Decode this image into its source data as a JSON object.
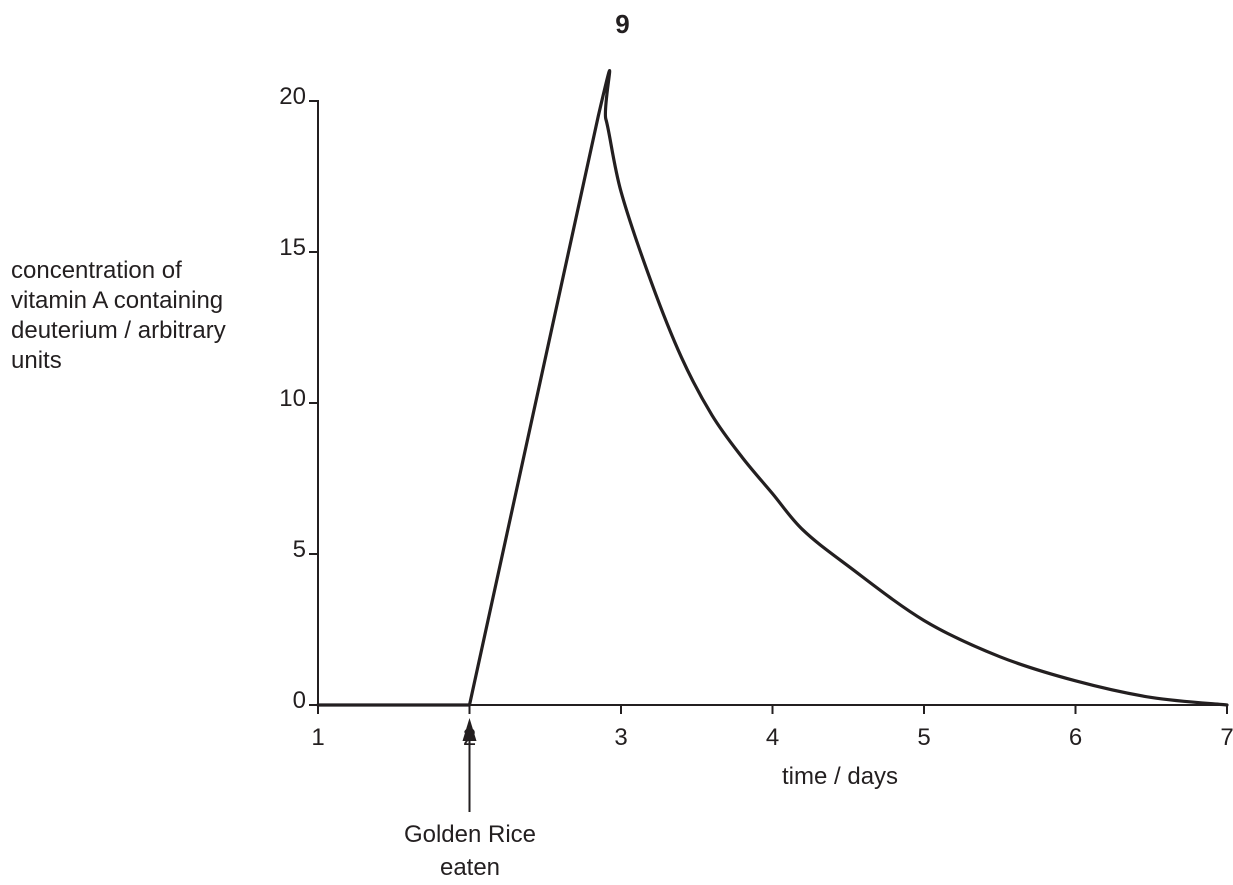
{
  "page": {
    "number": "9"
  },
  "chart_data": {
    "type": "line",
    "title": "",
    "xlabel": "time / days",
    "ylabel_lines": [
      "concentration of",
      "vitamin A containing",
      "deuterium / arbitrary",
      "units"
    ],
    "xlim": [
      1,
      7
    ],
    "ylim": [
      0,
      20
    ],
    "x_ticks": [
      "1",
      "2",
      "3",
      "4",
      "5",
      "6",
      "7"
    ],
    "y_ticks": [
      "0",
      "5",
      "10",
      "15",
      "20"
    ],
    "grid": false,
    "legend": "none",
    "series": [
      {
        "points": [
          [
            1.0,
            0
          ],
          [
            2.0,
            0
          ],
          [
            2.85,
            19.5
          ],
          [
            2.9,
            19.4
          ],
          [
            3.0,
            17.0
          ],
          [
            3.2,
            14.0
          ],
          [
            3.4,
            11.5
          ],
          [
            3.6,
            9.6
          ],
          [
            3.8,
            8.2
          ],
          [
            4.0,
            7.0
          ],
          [
            4.2,
            5.8
          ],
          [
            4.5,
            4.6
          ],
          [
            5.0,
            2.8
          ],
          [
            5.5,
            1.6
          ],
          [
            6.0,
            0.8
          ],
          [
            6.5,
            0.25
          ],
          [
            7.0,
            0
          ]
        ]
      }
    ],
    "annotation": {
      "x": 2,
      "lines": [
        "Golden Rice",
        "eaten"
      ]
    }
  }
}
